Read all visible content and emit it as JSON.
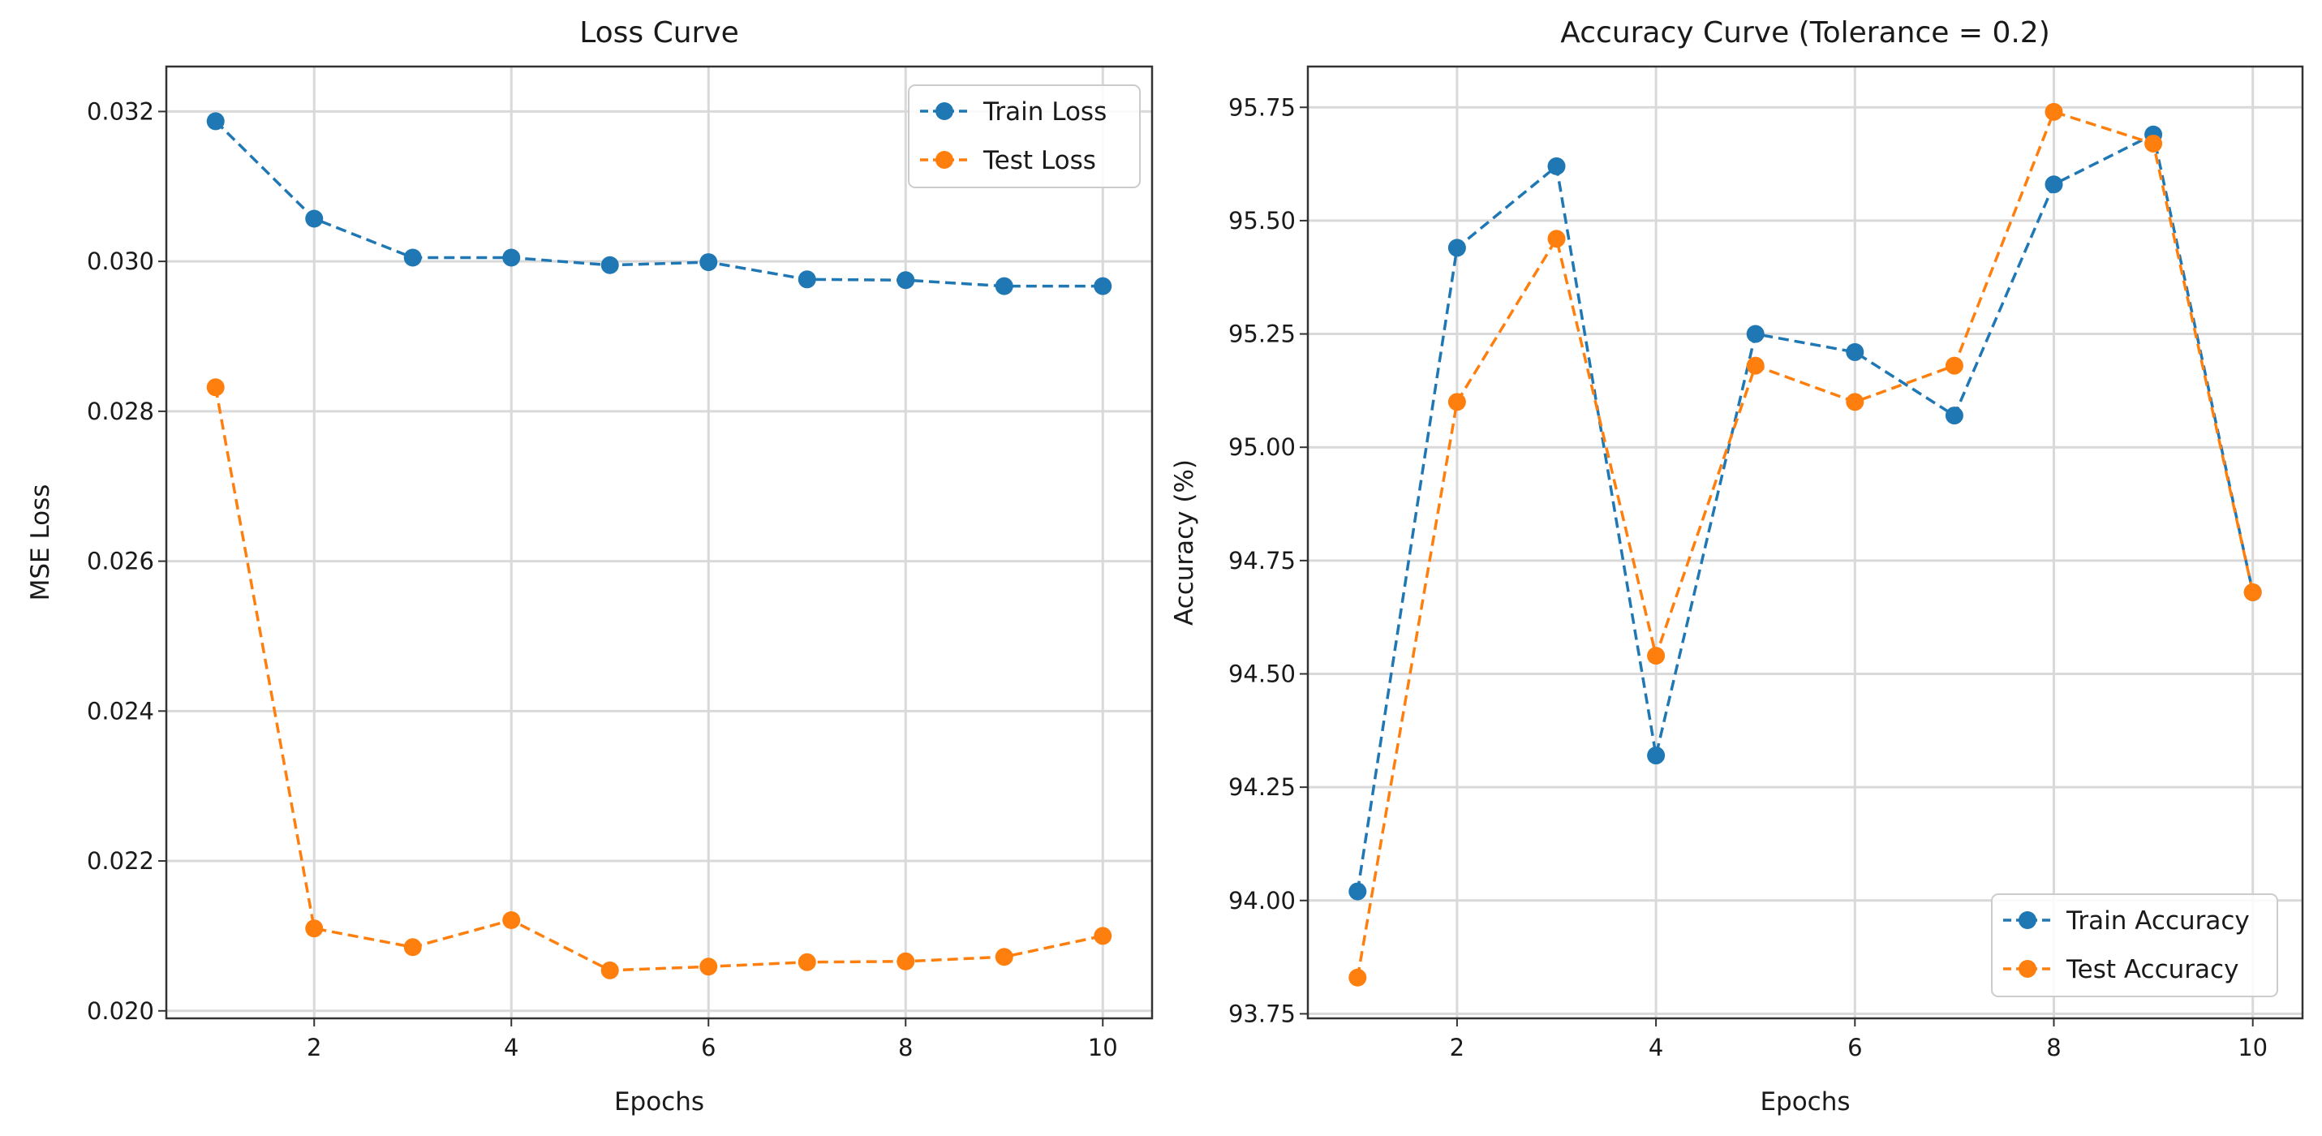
{
  "chart_data": [
    {
      "type": "line",
      "title": "Loss Curve",
      "xlabel": "Epochs",
      "ylabel": "MSE Loss",
      "x": [
        1,
        2,
        3,
        4,
        5,
        6,
        7,
        8,
        9,
        10
      ],
      "xlim": [
        0.5,
        10.5
      ],
      "ylim": [
        0.0199,
        0.0326
      ],
      "xticks": [
        2,
        4,
        6,
        8,
        10
      ],
      "xtick_labels": [
        "2",
        "4",
        "6",
        "8",
        "10"
      ],
      "yticks": [
        0.02,
        0.022,
        0.024,
        0.026,
        0.028,
        0.03,
        0.032
      ],
      "ytick_labels": [
        "0.020",
        "0.022",
        "0.024",
        "0.026",
        "0.028",
        "0.030",
        "0.032"
      ],
      "grid": true,
      "legend_position": "top-right",
      "series": [
        {
          "name": "Train Loss",
          "color": "#1f77b4",
          "linestyle": "dashed",
          "marker": "circle",
          "values": [
            0.03187,
            0.03057,
            0.03005,
            0.03005,
            0.02995,
            0.02999,
            0.02976,
            0.02975,
            0.02967,
            0.02967
          ]
        },
        {
          "name": "Test Loss",
          "color": "#ff7f0e",
          "linestyle": "dashed",
          "marker": "circle",
          "values": [
            0.02832,
            0.0211,
            0.02085,
            0.02121,
            0.02054,
            0.02059,
            0.02065,
            0.02066,
            0.02072,
            0.021
          ]
        }
      ]
    },
    {
      "type": "line",
      "title": "Accuracy Curve (Tolerance = 0.2)",
      "xlabel": "Epochs",
      "ylabel": "Accuracy (%)",
      "x": [
        1,
        2,
        3,
        4,
        5,
        6,
        7,
        8,
        9,
        10
      ],
      "xlim": [
        0.5,
        10.5
      ],
      "ylim": [
        93.74,
        95.84
      ],
      "xticks": [
        2,
        4,
        6,
        8,
        10
      ],
      "xtick_labels": [
        "2",
        "4",
        "6",
        "8",
        "10"
      ],
      "yticks": [
        93.75,
        94.0,
        94.25,
        94.5,
        94.75,
        95.0,
        95.25,
        95.5,
        95.75
      ],
      "ytick_labels": [
        "93.75",
        "94.00",
        "94.25",
        "94.50",
        "94.75",
        "95.00",
        "95.25",
        "95.50",
        "95.75"
      ],
      "grid": true,
      "legend_position": "bottom-right",
      "series": [
        {
          "name": "Train Accuracy",
          "color": "#1f77b4",
          "linestyle": "dashed",
          "marker": "circle",
          "values": [
            94.02,
            95.44,
            95.62,
            94.32,
            95.25,
            95.21,
            95.07,
            95.58,
            95.69,
            94.68
          ]
        },
        {
          "name": "Test Accuracy",
          "color": "#ff7f0e",
          "linestyle": "dashed",
          "marker": "circle",
          "values": [
            93.83,
            95.1,
            95.46,
            94.54,
            95.18,
            95.1,
            95.18,
            95.74,
            95.67,
            94.68
          ]
        }
      ]
    }
  ]
}
